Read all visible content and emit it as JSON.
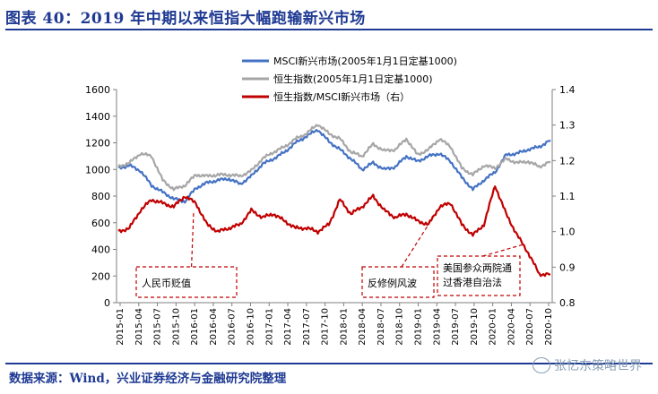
{
  "header": {
    "title": "图表 40：2019 年中期以来恒指大幅跑输新兴市场"
  },
  "footer": {
    "source": "数据来源：Wind，兴业证券经济与金融研究院整理",
    "watermark": "张忆东策略世界"
  },
  "chart_data": {
    "type": "line",
    "title": "",
    "left_axis": {
      "min": 0,
      "max": 1600,
      "ticks": [
        0,
        200,
        400,
        600,
        800,
        1000,
        1200,
        1400,
        1600
      ]
    },
    "right_axis": {
      "min": 0.8,
      "max": 1.4,
      "ticks": [
        "0.8",
        "0.9",
        "1.0",
        "1.1",
        "1.2",
        "1.3",
        "1.4"
      ]
    },
    "x_ticks": [
      "2015-01",
      "2015-04",
      "2015-07",
      "2015-10",
      "2016-01",
      "2016-04",
      "2016-07",
      "2016-10",
      "2017-01",
      "2017-04",
      "2017-07",
      "2017-10",
      "2018-01",
      "2018-04",
      "2018-07",
      "2018-10",
      "2019-01",
      "2019-04",
      "2019-07",
      "2019-10",
      "2020-01",
      "2020-04",
      "2020-07",
      "2020-10"
    ],
    "series": [
      {
        "name": "MSCI新兴市场(2005年1月1日定基1000)",
        "axis": "left",
        "color": "#4472c4",
        "values": [
          1010,
          1030,
          990,
          880,
          830,
          780,
          760,
          860,
          900,
          920,
          930,
          890,
          950,
          1040,
          1080,
          1130,
          1200,
          1250,
          1300,
          1210,
          1150,
          1080,
          1000,
          1050,
          1000,
          1020,
          1100,
          1060,
          1100,
          1120,
          1060,
          940,
          850,
          920,
          980,
          1110,
          1120,
          1150,
          1170,
          1220
        ]
      },
      {
        "name": "恒生指数(2005年1月1日定基1000)",
        "axis": "left",
        "color": "#a6a6a6",
        "values": [
          1020,
          1050,
          1120,
          1100,
          920,
          850,
          880,
          960,
          950,
          960,
          960,
          950,
          990,
          1080,
          1130,
          1170,
          1230,
          1270,
          1340,
          1270,
          1230,
          1130,
          1100,
          1190,
          1140,
          1150,
          1230,
          1110,
          1150,
          1230,
          1170,
          1010,
          960,
          1030,
          1010,
          1080,
          1050,
          1060,
          1020,
          1060
        ]
      },
      {
        "name": "恒生指数/MSCI新兴市场（右）",
        "axis": "right",
        "color": "#c00000",
        "values": [
          1.0,
          1.01,
          1.06,
          1.09,
          1.08,
          1.07,
          1.1,
          1.08,
          1.02,
          1.0,
          1.01,
          1.02,
          1.06,
          1.04,
          1.05,
          1.03,
          1.01,
          1.01,
          1.0,
          1.02,
          1.09,
          1.05,
          1.07,
          1.1,
          1.06,
          1.04,
          1.05,
          1.03,
          1.02,
          1.07,
          1.08,
          1.02,
          0.99,
          1.02,
          1.13,
          1.05,
          0.99,
          0.94,
          0.88,
          0.88
        ]
      }
    ],
    "annotations": [
      {
        "label": "人民币贬值"
      },
      {
        "label": "反修例风波"
      },
      {
        "label": "美国参众两院通过香港自治法"
      }
    ]
  }
}
